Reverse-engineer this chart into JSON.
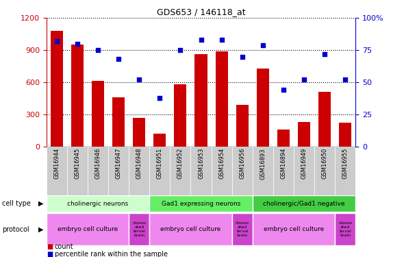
{
  "title": "GDS653 / 146118_at",
  "samples": [
    "GSM16944",
    "GSM16945",
    "GSM16946",
    "GSM16947",
    "GSM16948",
    "GSM16951",
    "GSM16952",
    "GSM16953",
    "GSM16954",
    "GSM16956",
    "GSM16893",
    "GSM16894",
    "GSM16949",
    "GSM16950",
    "GSM16955"
  ],
  "counts": [
    1080,
    950,
    610,
    460,
    270,
    120,
    580,
    860,
    890,
    390,
    730,
    160,
    230,
    510,
    220
  ],
  "percentiles": [
    82,
    80,
    75,
    68,
    52,
    38,
    75,
    83,
    83,
    70,
    79,
    44,
    52,
    72,
    52
  ],
  "ylim_left": [
    0,
    1200
  ],
  "ylim_right": [
    0,
    100
  ],
  "yticks_left": [
    0,
    300,
    600,
    900,
    1200
  ],
  "yticks_right": [
    0,
    25,
    50,
    75,
    100
  ],
  "bar_color": "#cc0000",
  "dot_color": "#0000cc",
  "cell_type_groups": [
    {
      "label": "cholinergic neurons",
      "start": 0,
      "end": 5,
      "color": "#ccffcc"
    },
    {
      "label": "Gad1 expressing neurons",
      "start": 5,
      "end": 10,
      "color": "#66ee66"
    },
    {
      "label": "cholinergic/Gad1 negative",
      "start": 10,
      "end": 15,
      "color": "#44cc44"
    }
  ],
  "protocol_groups": [
    {
      "label": "embryo cell culture",
      "start": 0,
      "end": 4,
      "color": "#ee88ee"
    },
    {
      "label": "dissoo\nated\nlarval\nbrain",
      "start": 4,
      "end": 5,
      "color": "#cc44cc"
    },
    {
      "label": "embryo cell culture",
      "start": 5,
      "end": 9,
      "color": "#ee88ee"
    },
    {
      "label": "dissoo\nated\nlarval\nbrain",
      "start": 9,
      "end": 10,
      "color": "#cc44cc"
    },
    {
      "label": "embryo cell culture",
      "start": 10,
      "end": 14,
      "color": "#ee88ee"
    },
    {
      "label": "dissoo\nated\nlarval\nbrain",
      "start": 14,
      "end": 15,
      "color": "#cc44cc"
    }
  ],
  "tick_bg_color": "#cccccc",
  "legend_items": [
    {
      "color": "#cc0000",
      "label": "count"
    },
    {
      "color": "#0000cc",
      "label": "percentile rank within the sample"
    }
  ]
}
